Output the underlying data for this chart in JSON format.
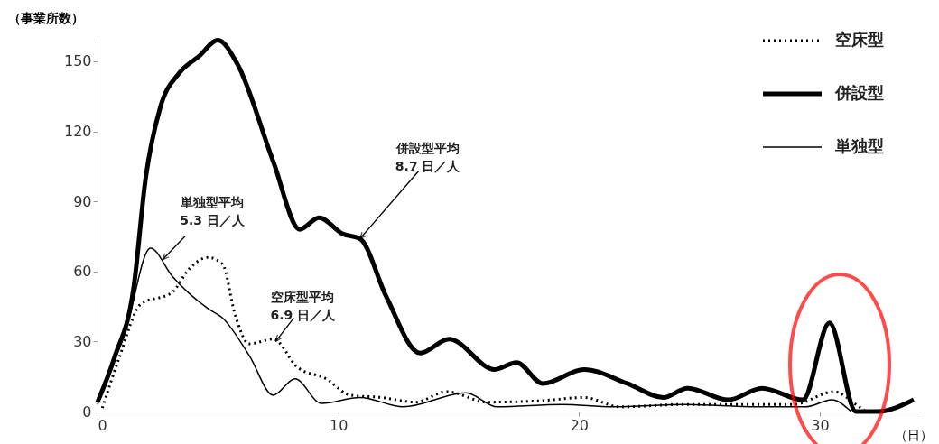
{
  "chart_data": {
    "type": "line",
    "ylabel": "（事業所数）",
    "xlabel": "（日）",
    "xlim": [
      0,
      34.2
    ],
    "xticks": [
      0,
      10,
      20,
      30
    ],
    "ylim": [
      0,
      160
    ],
    "yticks": [
      0,
      30,
      60,
      90,
      120,
      150
    ],
    "grid": false,
    "legend": "top right",
    "marker": "none",
    "series": [
      {
        "name": "空床型",
        "color": "#000000",
        "line_style": "dotted",
        "x": [
          0.2,
          0.9,
          1.8,
          3.1,
          3.8,
          4.6,
          5.2,
          5.7,
          6.3,
          7.3,
          8.3,
          9.5,
          10.5,
          11.8,
          13.2,
          14.5,
          16.2,
          18.4,
          20.2,
          21.7,
          24.4,
          26.7,
          28.9,
          30.6,
          31.5,
          31.9
        ],
        "values": [
          1.5,
          23,
          46,
          51,
          61,
          66,
          63,
          42,
          29,
          31,
          19,
          14,
          7,
          6,
          4,
          8.5,
          4,
          4.6,
          6,
          2,
          3,
          3,
          3,
          8.5,
          3,
          0
        ]
      },
      {
        "name": "併設型",
        "color": "#000000",
        "line_style": "solid",
        "x": [
          0,
          0.7,
          1.5,
          2.0,
          2.6,
          3.4,
          4.2,
          5.0,
          5.8,
          7.3,
          8.4,
          9.2,
          10.2,
          10.9,
          12,
          13.4,
          14.6,
          16.5,
          17.4,
          18.5,
          20.2,
          22,
          23.5,
          24.5,
          26.2,
          27.6,
          29.3,
          30.4,
          31.5,
          32.4,
          33.9
        ],
        "values": [
          4,
          23,
          53,
          100,
          130,
          145,
          152,
          159,
          149,
          107,
          78,
          83,
          76,
          74,
          49,
          25,
          31,
          18,
          21,
          12,
          18,
          12,
          6,
          10,
          5,
          10,
          5,
          38,
          0,
          0,
          5
        ]
      },
      {
        "name": "単独型",
        "color": "#000000",
        "line_style": "solid",
        "x": [
          0,
          1.2,
          2.2,
          3.1,
          4.6,
          5.2,
          6.3,
          7.3,
          8.2,
          9.3,
          10.9,
          12.7,
          15.3,
          16.6,
          19.3,
          21.4,
          24.4,
          27.4,
          29.4,
          30.5,
          31.3
        ],
        "values": [
          3,
          36,
          70,
          58,
          44,
          40,
          24,
          7,
          14,
          3.5,
          6,
          2,
          8,
          2,
          3,
          2,
          3,
          2,
          2,
          5,
          0
        ]
      }
    ],
    "annotations": [
      {
        "text": "単独型平均\n5.3 日／人",
        "x": 2.7,
        "y": 65
      },
      {
        "text": "空床型平均\n6.9 日／人",
        "x": 7.4,
        "y": 30
      },
      {
        "text": "併設型平均\n8.7 日／人",
        "x": 10.9,
        "y": 74
      }
    ]
  }
}
